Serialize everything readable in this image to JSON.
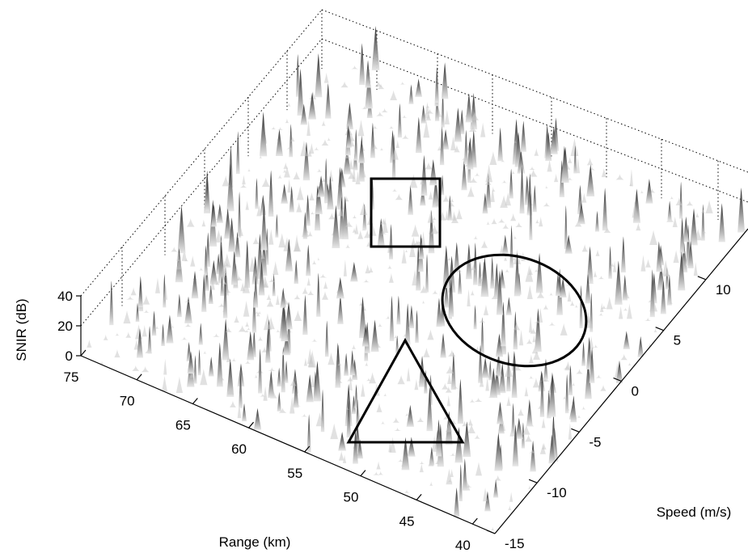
{
  "chart_data": {
    "type": "surface3d",
    "title": "",
    "xlabel": "Range (km)",
    "ylabel": "Speed (m/s)",
    "zlabel": "SNIR (dB)",
    "range_ticks": [
      "75",
      "70",
      "65",
      "60",
      "55",
      "50",
      "45",
      "40"
    ],
    "speed_ticks": [
      "-15",
      "-10",
      "-5",
      "0",
      "5",
      "10"
    ],
    "snir_ticks": [
      "0",
      "20",
      "40"
    ],
    "range_lim": [
      38,
      75
    ],
    "speed_lim": [
      -15,
      15
    ],
    "snir_lim": [
      0,
      40
    ],
    "grid": true,
    "colormap": "gray",
    "annotations": [
      {
        "shape": "square",
        "range_km": 50.5,
        "speed_ms": 4
      },
      {
        "shape": "ellipse",
        "range_km": 44,
        "speed_ms": 5
      },
      {
        "shape": "triangle",
        "range_km": 46,
        "speed_ms": -6
      }
    ]
  }
}
